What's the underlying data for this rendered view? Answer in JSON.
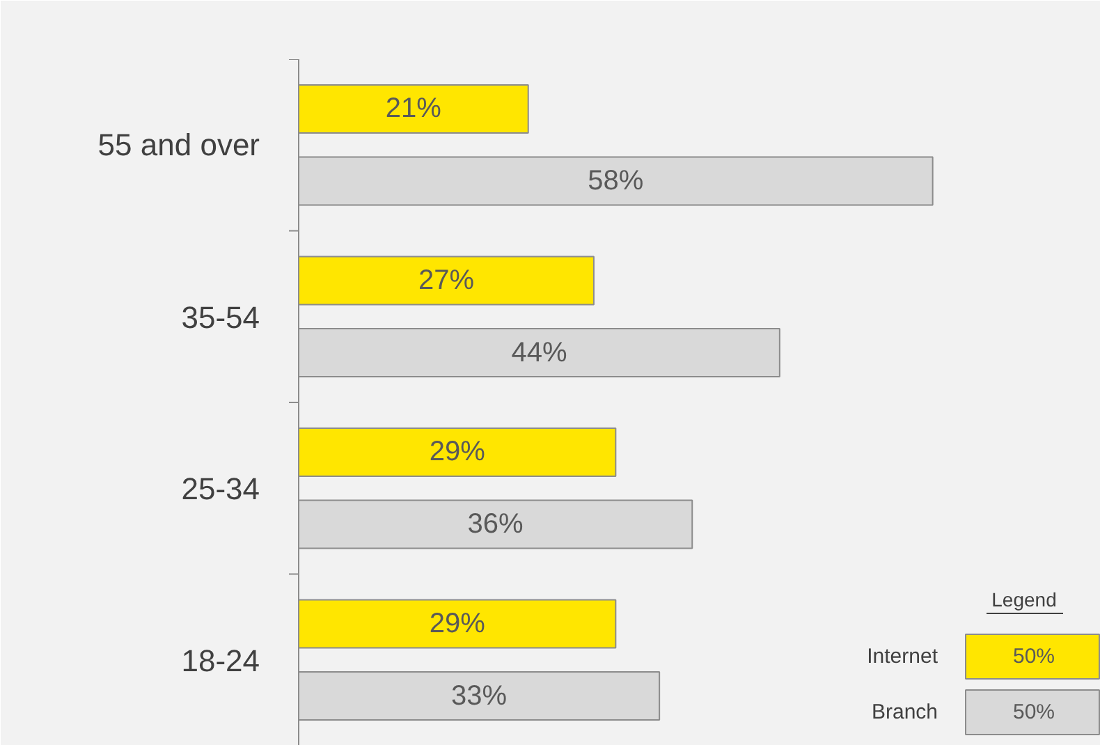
{
  "chart_data": {
    "type": "bar",
    "orientation": "horizontal",
    "categories": [
      "55 and over",
      "35-54",
      "25-34",
      "18-24"
    ],
    "series": [
      {
        "name": "Internet",
        "color": "#ffe600",
        "values": [
          21,
          27,
          29,
          29
        ],
        "value_labels": [
          "21%",
          "27%",
          "29%",
          "29%"
        ]
      },
      {
        "name": "Branch",
        "color": "#d9d9d9",
        "values": [
          58,
          44,
          36,
          33
        ],
        "value_labels": [
          "58%",
          "44%",
          "36%",
          "33%"
        ]
      }
    ],
    "data_labels": true,
    "legend": "bottom right",
    "legend_title": "Legend",
    "annotations": [
      "50%",
      "50%"
    ],
    "grid": false
  }
}
